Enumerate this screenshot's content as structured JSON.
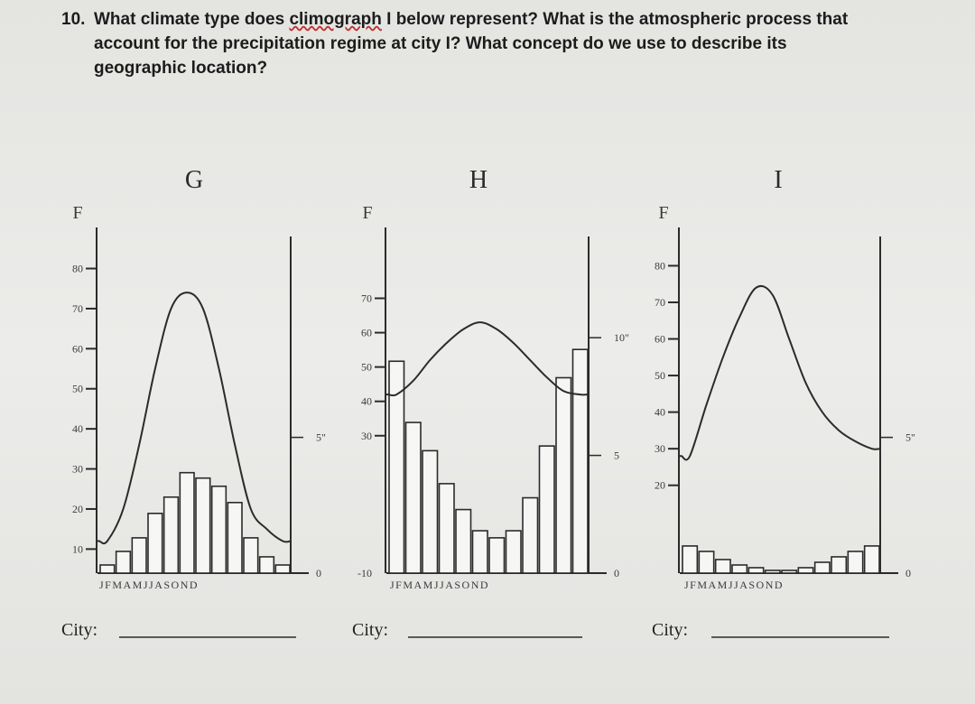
{
  "question": {
    "number": "10.",
    "line1_before": "What climate type does ",
    "line1_underlined": "climograph",
    "line1_after": " I below represent? What is the atmospheric process that",
    "line2": "account for the precipitation regime at city I? What concept do we use to describe its",
    "line3": "geographic location?"
  },
  "chart_data": [
    {
      "type": "bar+line",
      "title": "G",
      "temp_unit": "F",
      "temp_ticks": [
        "80",
        "70",
        "60",
        "50",
        "40",
        "30",
        "20",
        "10"
      ],
      "temp_tick_values": [
        80,
        70,
        60,
        50,
        40,
        30,
        20,
        10
      ],
      "temp_range": [
        4,
        88
      ],
      "precip_ticks": [
        {
          "label": "5\"",
          "value": 5
        },
        {
          "label": "0",
          "value": 0
        }
      ],
      "precip_range": [
        0,
        12.4
      ],
      "months_label": "JFMAMJJASOND",
      "months": [
        "J",
        "F",
        "M",
        "A",
        "M",
        "J",
        "J",
        "A",
        "S",
        "O",
        "N",
        "D"
      ],
      "temperature": [
        12,
        20,
        36,
        55,
        70,
        74,
        70,
        55,
        36,
        20,
        15,
        12
      ],
      "precipitation": [
        0.3,
        0.8,
        1.3,
        2.2,
        2.8,
        3.7,
        3.5,
        3.2,
        2.6,
        1.3,
        0.6,
        0.3
      ],
      "city_label": "City:"
    },
    {
      "type": "bar+line",
      "title": "H",
      "temp_unit": "F",
      "temp_ticks": [
        "70",
        "60",
        "50",
        "40",
        "30"
      ],
      "temp_tick_values": [
        70,
        60,
        50,
        40,
        30
      ],
      "temp_range": [
        -10,
        88
      ],
      "bottom_tick": "-10",
      "precip_ticks": [
        {
          "label": "10\"",
          "value": 10
        },
        {
          "label": "5",
          "value": 5
        },
        {
          "label": "0",
          "value": 0
        }
      ],
      "precip_range": [
        0,
        14.3
      ],
      "months_label": "JFMAMJJASOND",
      "months": [
        "J",
        "F",
        "M",
        "A",
        "M",
        "J",
        "J",
        "A",
        "S",
        "O",
        "N",
        "D"
      ],
      "temperature": [
        42,
        46,
        52,
        57,
        61,
        63,
        61,
        57,
        52,
        47,
        43,
        42
      ],
      "precipitation": [
        9.0,
        6.4,
        5.2,
        3.8,
        2.7,
        1.8,
        1.5,
        1.8,
        3.2,
        5.4,
        8.3,
        9.5
      ],
      "city_label": "City:"
    },
    {
      "type": "bar+line",
      "title": "I",
      "temp_unit": "F",
      "temp_ticks": [
        "80",
        "70",
        "60",
        "50",
        "40",
        "30",
        "20"
      ],
      "temp_tick_values": [
        80,
        70,
        60,
        50,
        40,
        30,
        20
      ],
      "temp_range": [
        -4,
        88
      ],
      "precip_ticks": [
        {
          "label": "5\"",
          "value": 5
        },
        {
          "label": "0",
          "value": 0
        }
      ],
      "precip_range": [
        0,
        12.4
      ],
      "months_label": "JFMAMJJASOND",
      "months": [
        "J",
        "F",
        "M",
        "A",
        "M",
        "J",
        "J",
        "A",
        "S",
        "O",
        "N",
        "D"
      ],
      "temperature": [
        28,
        42,
        55,
        66,
        74,
        72,
        60,
        48,
        40,
        35,
        32,
        30
      ],
      "precipitation": [
        1.0,
        0.8,
        0.5,
        0.3,
        0.2,
        0.1,
        0.1,
        0.2,
        0.4,
        0.6,
        0.8,
        1.0
      ],
      "city_label": "City:"
    }
  ],
  "colors": {
    "ink": "#2b2b2b",
    "bar_fill": "#f6f6f4",
    "page": "#e9e9e6"
  }
}
